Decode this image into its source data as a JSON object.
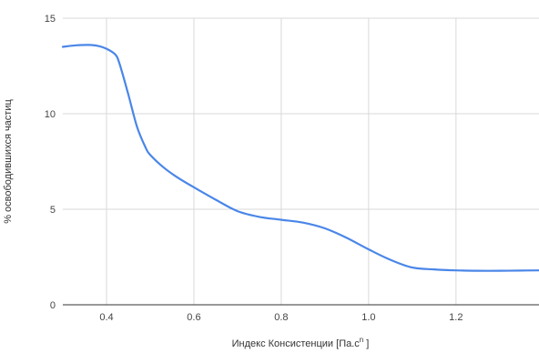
{
  "chart_data": {
    "type": "line",
    "title": "",
    "xlabel": "Индекс Консистенции [Па.с",
    "xlabel_superscript": "n",
    "xlabel_suffix": " ]",
    "ylabel": "% освободившихся частиц",
    "xlim": [
      0.3,
      1.39
    ],
    "ylim": [
      0,
      15
    ],
    "x_ticks": [
      0.4,
      0.6,
      0.8,
      1.0,
      1.2
    ],
    "x_tick_labels": [
      "0.4",
      "0.6",
      "0.8",
      "1.0",
      "1.2"
    ],
    "y_ticks": [
      0,
      5,
      10,
      15
    ],
    "y_tick_labels": [
      "0",
      "5",
      "10",
      "15"
    ],
    "grid": true,
    "legend": "none",
    "series": [
      {
        "color": "#4a86e8",
        "x": [
          0.3,
          0.33,
          0.36,
          0.38,
          0.4,
          0.42,
          0.43,
          0.45,
          0.47,
          0.49,
          0.5,
          0.53,
          0.56,
          0.6,
          0.65,
          0.7,
          0.75,
          0.8,
          0.85,
          0.9,
          0.95,
          1.0,
          1.05,
          1.1,
          1.15,
          1.2,
          1.25,
          1.3,
          1.35,
          1.39
        ],
        "y": [
          13.5,
          13.58,
          13.6,
          13.55,
          13.4,
          13.1,
          12.6,
          11.0,
          9.3,
          8.2,
          7.85,
          7.2,
          6.7,
          6.15,
          5.5,
          4.9,
          4.6,
          4.45,
          4.3,
          4.0,
          3.5,
          2.9,
          2.35,
          1.95,
          1.85,
          1.8,
          1.78,
          1.78,
          1.79,
          1.8
        ]
      }
    ]
  }
}
